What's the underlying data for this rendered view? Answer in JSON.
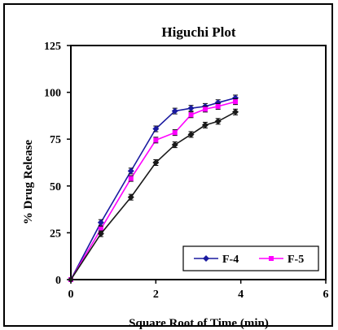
{
  "chart_data": {
    "type": "line",
    "title": "Higuchi Plot",
    "xlabel": "Square Root of Time (min)",
    "ylabel": "% Drug Release",
    "xlim": [
      0,
      6
    ],
    "ylim": [
      0,
      125
    ],
    "xticks": [
      "0",
      "2",
      "4",
      "6"
    ],
    "yticks": [
      "0",
      "25",
      "50",
      "75",
      "100",
      "125"
    ],
    "legend_position": "bottom-right",
    "grid": false,
    "series": [
      {
        "name": "F-4",
        "color": "#1a1aa0",
        "marker": "diamond",
        "x": [
          0,
          0.707,
          1.414,
          2.0,
          2.449,
          2.828,
          3.162,
          3.464,
          3.873
        ],
        "y": [
          0,
          30.5,
          58.0,
          80.5,
          90.0,
          91.5,
          92.5,
          94.5,
          97.0
        ]
      },
      {
        "name": "F-5",
        "color": "#ff00ff",
        "marker": "square",
        "x": [
          0,
          0.707,
          1.414,
          2.0,
          2.449,
          2.828,
          3.162,
          3.464,
          3.873
        ],
        "y": [
          0,
          27.0,
          54.0,
          74.5,
          78.5,
          88.0,
          91.0,
          92.5,
          95.0
        ]
      },
      {
        "name": "",
        "color": "#1a1a1a",
        "marker": "diamond",
        "x": [
          0,
          0.707,
          1.414,
          2.0,
          2.449,
          2.828,
          3.162,
          3.464,
          3.873
        ],
        "y": [
          0,
          24.5,
          44.0,
          62.5,
          72.0,
          77.5,
          82.5,
          84.5,
          89.5
        ]
      }
    ]
  }
}
